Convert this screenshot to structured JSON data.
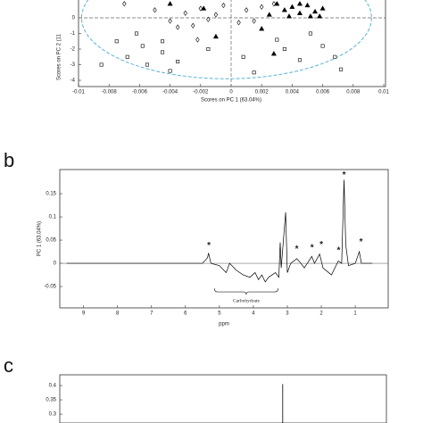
{
  "chart_data": [
    {
      "type": "scatter",
      "xlabel": "Scores on PC 1 (63.04%)",
      "ylabel": "Scores on PC 2 (11",
      "xlim": [
        -0.01,
        0.01
      ],
      "ylim": [
        -4.4,
        1.15
      ],
      "xticks": [
        -0.01,
        -0.008,
        -0.006,
        -0.004,
        -0.002,
        0,
        0.002,
        0.004,
        0.006,
        0.008,
        0.01
      ],
      "yticks": [
        0,
        -1,
        -2,
        -3,
        -4
      ],
      "ellipse": {
        "cx": -0.0003,
        "cy": 0,
        "rx": 0.0095,
        "ry": 3.9,
        "color": "#5ab4d6"
      },
      "series": [
        {
          "marker": "triangle",
          "color": "#000000",
          "x": [
            0.003,
            0.0035,
            0.004,
            0.0045,
            0.005,
            0.0055,
            0.006,
            0.0045,
            0.0038,
            0.0052,
            0.0025,
            0.002,
            -0.001,
            -0.004,
            0.0028,
            -0.0018,
            0.0058
          ],
          "values": [
            0.9,
            0.5,
            0.7,
            0.3,
            0.8,
            0.4,
            0.6,
            0.9,
            0.1,
            0.1,
            0.2,
            -0.7,
            -1.2,
            0.9,
            -2.3,
            0.6,
            0.1
          ]
        },
        {
          "marker": "diamond",
          "color": "#000000",
          "x": [
            -0.007,
            -0.005,
            -0.004,
            -0.003,
            -0.002,
            -0.0025,
            -0.0015,
            -0.001,
            -0.0005,
            0.0005,
            0.001,
            0.0015,
            0.002,
            -0.0035,
            -0.0022,
            0.0028
          ],
          "values": [
            0.9,
            0.5,
            -0.2,
            0.3,
            0.6,
            -0.5,
            -0.1,
            0.2,
            0.8,
            -0.3,
            0.5,
            -0.2,
            0.7,
            -0.6,
            -1.4,
            0.9
          ]
        },
        {
          "marker": "square",
          "color": "#000000",
          "x": [
            -0.0075,
            -0.0068,
            -0.0062,
            -0.0058,
            -0.0055,
            -0.0045,
            -0.004,
            -0.0035,
            -0.0045,
            -0.0015,
            0.0008,
            0.0015,
            0.003,
            0.0035,
            0.0045,
            0.006,
            0.0068,
            0.0072,
            -0.0085,
            0.0052
          ],
          "values": [
            -1.5,
            -2.5,
            -1.0,
            -1.8,
            -3.0,
            -2.2,
            -3.4,
            -2.8,
            -1.5,
            -2.0,
            -2.5,
            -3.5,
            -1.4,
            -2.0,
            -2.7,
            -1.8,
            -2.5,
            -3.3,
            -3.0,
            -1.0
          ]
        }
      ]
    },
    {
      "type": "line",
      "panel": "b",
      "xlabel": "ppm",
      "ylabel": "PC 1 (63.04%)",
      "xlim": [
        9.7,
        0.03
      ],
      "ylim": [
        -0.096,
        0.202
      ],
      "xticks": [
        9,
        8,
        7,
        6,
        5,
        4,
        3,
        2,
        1
      ],
      "yticks": [
        0.15,
        0.1,
        0.05,
        0,
        -0.05
      ],
      "color": "#000000",
      "x": [
        9.5,
        5.5,
        5.35,
        5.32,
        5.25,
        5.0,
        4.8,
        4.7,
        4.5,
        4.3,
        4.1,
        3.95,
        3.85,
        3.75,
        3.65,
        3.55,
        3.45,
        3.35,
        3.25,
        3.21,
        3.18,
        3.05,
        3.0,
        2.9,
        2.72,
        2.6,
        2.5,
        2.28,
        2.2,
        2.05,
        1.95,
        1.7,
        1.5,
        1.4,
        1.33,
        1.28,
        1.2,
        1.0,
        0.88,
        0.82,
        0.5
      ],
      "values": [
        0,
        0,
        0.012,
        0.022,
        0,
        -0.005,
        -0.02,
        0,
        -0.015,
        -0.025,
        -0.03,
        -0.02,
        -0.035,
        -0.025,
        -0.04,
        -0.03,
        -0.025,
        -0.02,
        -0.03,
        0.045,
        -0.01,
        0.11,
        -0.02,
        0,
        0.01,
        0,
        -0.01,
        0.015,
        0,
        0.02,
        -0.01,
        -0.025,
        0.005,
        0,
        0.18,
        0.04,
        -0.005,
        0,
        0.025,
        0,
        0
      ],
      "annotations": [
        {
          "text": "*",
          "x": 5.31,
          "y": 0.038
        },
        {
          "text": "*",
          "x": 2.72,
          "y": 0.03
        },
        {
          "text": "*",
          "x": 2.27,
          "y": 0.033
        },
        {
          "text": "*",
          "x": 2.0,
          "y": 0.04
        },
        {
          "text": "*",
          "x": 1.49,
          "y": 0.027
        },
        {
          "text": "*",
          "x": 1.33,
          "y": 0.19
        },
        {
          "text": "*",
          "x": 0.83,
          "y": 0.046
        }
      ],
      "bracket": {
        "text": "Carbohydrate",
        "from": 5.15,
        "to": 3.27
      }
    },
    {
      "type": "spike",
      "panel": "c",
      "xlim": [
        9.7,
        0.03
      ],
      "ylim": [
        0.269,
        0.4375
      ],
      "yticks": [
        0.4,
        0.35,
        0.3
      ],
      "color": "#000000",
      "x": [
        3.1
      ],
      "values": [
        0.405
      ]
    }
  ]
}
